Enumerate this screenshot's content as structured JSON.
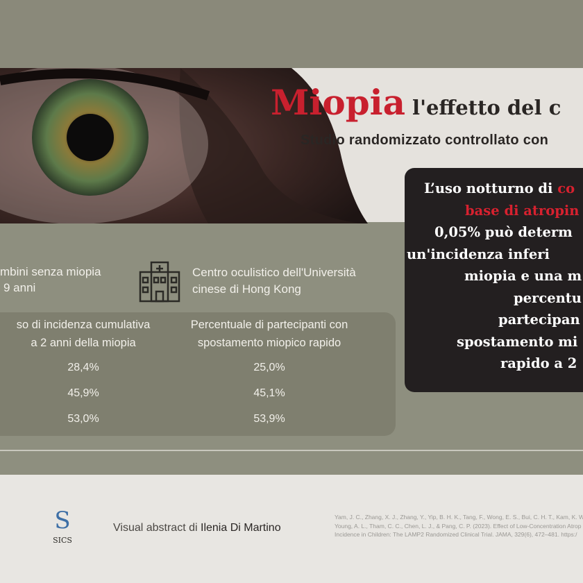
{
  "header": {
    "title": "Miopia",
    "title_rest": "l'effetto del c",
    "subtitle": "Studio randomizzato controllato con"
  },
  "callout": {
    "lines": [
      [
        "L’uso notturno di ",
        "co"
      ],
      [
        "",
        "base di atropin"
      ],
      [
        "0,05% può determ"
      ],
      [
        "un'incidenza  inferi"
      ],
      [
        "miopia e una m"
      ],
      [
        "percentu"
      ],
      [
        "partecipan"
      ],
      [
        "spostamento mi"
      ],
      [
        "rapido a 2"
      ]
    ]
  },
  "participants": {
    "lines": [
      "mbini senza miopia",
      "9 anni"
    ]
  },
  "location": {
    "lines": [
      "Centro oculistico dell'Università",
      "cinese di Hong Kong"
    ]
  },
  "table": {
    "headers": [
      [
        "so di incidenza cumulativa",
        "a 2 anni della miopia"
      ],
      [
        "Percentuale di partecipanti con",
        "spostamento miopico rapido"
      ]
    ],
    "rows": [
      [
        "28,4%",
        "25,0%"
      ],
      [
        "45,9%",
        "45,1%"
      ],
      [
        "53,0%",
        "53,9%"
      ]
    ]
  },
  "footer": {
    "logo": "SICS",
    "credit": "Visual abstract di ",
    "author": "Ilenia Di Martino",
    "reference": [
      "Yam, J. C., Zhang, X. J., Zhang, Y., Yip, B. H. K., Tang, F., Wong, E. S., Bui, C. H. T., Kam, K. W., Ng",
      "Young, A. L., Tham, C. C., Chen, L. J., & Pang, C. P. (2023). Effect of Low-Concentration Atrop",
      "Incidence in Children: The LAMP2 Randomized Clinical Trial. JAMA, 329(6), 472–481. https:/"
    ]
  }
}
